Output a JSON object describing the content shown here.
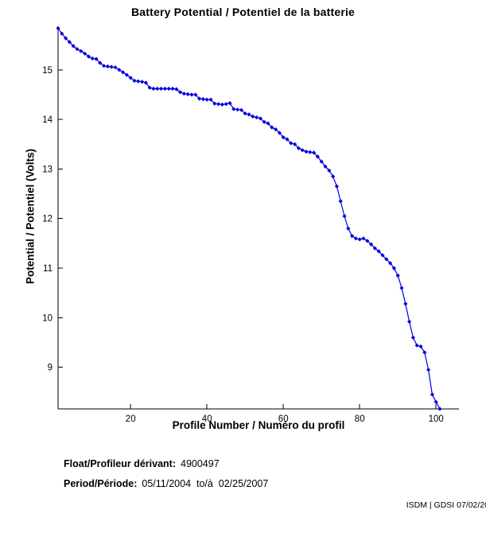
{
  "title": "Battery Potential / Potentiel de la batterie",
  "chart_data": {
    "type": "line",
    "title": "Battery Potential / Potentiel de la batterie",
    "xlabel": "Profile Number / Numéro du profil",
    "ylabel": "Potential / Potentiel (Volts)",
    "xlim": [
      1,
      106
    ],
    "ylim": [
      8.16,
      15.88
    ],
    "xticks": [
      20,
      40,
      60,
      80,
      100
    ],
    "yticks": [
      9,
      10,
      11,
      12,
      13,
      14,
      15
    ],
    "grid": false,
    "legend": null,
    "line_color": "#0000dd",
    "axis_color": "#000000",
    "marker": "diamond",
    "series": [
      {
        "name": "battery-potential",
        "x": [
          1,
          2,
          3,
          4,
          5,
          6,
          7,
          8,
          9,
          10,
          11,
          12,
          13,
          14,
          15,
          16,
          17,
          18,
          19,
          20,
          21,
          22,
          23,
          24,
          25,
          26,
          27,
          28,
          29,
          30,
          31,
          32,
          33,
          34,
          35,
          36,
          37,
          38,
          39,
          40,
          41,
          42,
          43,
          44,
          45,
          46,
          47,
          48,
          49,
          50,
          51,
          52,
          53,
          54,
          55,
          56,
          57,
          58,
          59,
          60,
          61,
          62,
          63,
          64,
          65,
          66,
          67,
          68,
          69,
          70,
          71,
          72,
          73,
          74,
          75,
          76,
          77,
          78,
          79,
          80,
          81,
          82,
          83,
          84,
          85,
          86,
          87,
          88,
          89,
          90,
          91,
          92,
          93,
          94,
          95,
          96,
          97,
          98,
          99,
          100,
          101
        ],
        "y": [
          15.84,
          15.73,
          15.64,
          15.56,
          15.48,
          15.42,
          15.38,
          15.33,
          15.27,
          15.23,
          15.22,
          15.14,
          15.08,
          15.07,
          15.06,
          15.05,
          15.0,
          14.95,
          14.9,
          14.84,
          14.78,
          14.77,
          14.76,
          14.74,
          14.64,
          14.62,
          14.62,
          14.62,
          14.62,
          14.62,
          14.62,
          14.61,
          14.55,
          14.52,
          14.51,
          14.5,
          14.5,
          14.42,
          14.41,
          14.4,
          14.4,
          14.32,
          14.31,
          14.3,
          14.31,
          14.33,
          14.21,
          14.2,
          14.19,
          14.12,
          14.1,
          14.06,
          14.04,
          14.02,
          13.95,
          13.92,
          13.84,
          13.8,
          13.73,
          13.64,
          13.6,
          13.52,
          13.5,
          13.42,
          13.38,
          13.35,
          13.34,
          13.33,
          13.25,
          13.15,
          13.05,
          12.97,
          12.85,
          12.65,
          12.35,
          12.05,
          11.8,
          11.65,
          11.6,
          11.58,
          11.6,
          11.55,
          11.48,
          11.4,
          11.34,
          11.26,
          11.18,
          11.1,
          11.0,
          10.85,
          10.6,
          10.28,
          9.92,
          9.6,
          9.44,
          9.42,
          9.3,
          8.95,
          8.45,
          8.3,
          8.16
        ]
      }
    ]
  },
  "footer": {
    "float_label": "Float/Profileur dérivant:",
    "float_value": "4900497",
    "period_label": "Period/Période:",
    "period_value": "05/11/2004  to/à  02/25/2007"
  },
  "credit": "ISDM | GDSI 07/02/20"
}
